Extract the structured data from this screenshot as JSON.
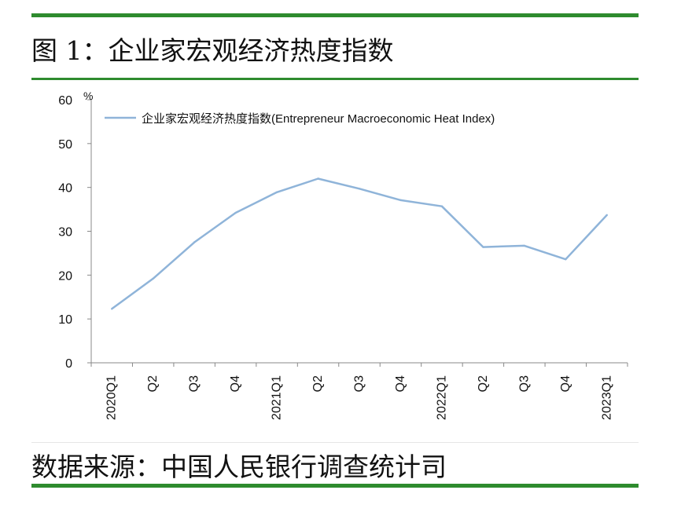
{
  "figure": {
    "title": "图 1：企业家宏观经济热度指数",
    "source": "数据来源：中国人民银行调查统计司"
  },
  "chart_data": {
    "type": "line",
    "title": "图 1：企业家宏观经济热度指数",
    "ylabel": "%",
    "xlabel": "",
    "ylim": [
      0,
      60
    ],
    "yticks": [
      0,
      10,
      20,
      30,
      40,
      50,
      60
    ],
    "grid": false,
    "legend_position": "top",
    "categories": [
      "2020Q1",
      "Q2",
      "Q3",
      "Q4",
      "2021Q1",
      "Q2",
      "Q3",
      "Q4",
      "2022Q1",
      "Q2",
      "Q3",
      "Q4",
      "2023Q1"
    ],
    "series": [
      {
        "name": "企业家宏观经济热度指数(Entrepreneur  Macroeconomic Heat Index)",
        "color": "#8fb4d9",
        "values": [
          12.3,
          19.2,
          27.5,
          34.2,
          38.9,
          42.0,
          39.7,
          37.1,
          35.7,
          26.4,
          26.7,
          23.6,
          33.7
        ]
      }
    ]
  }
}
